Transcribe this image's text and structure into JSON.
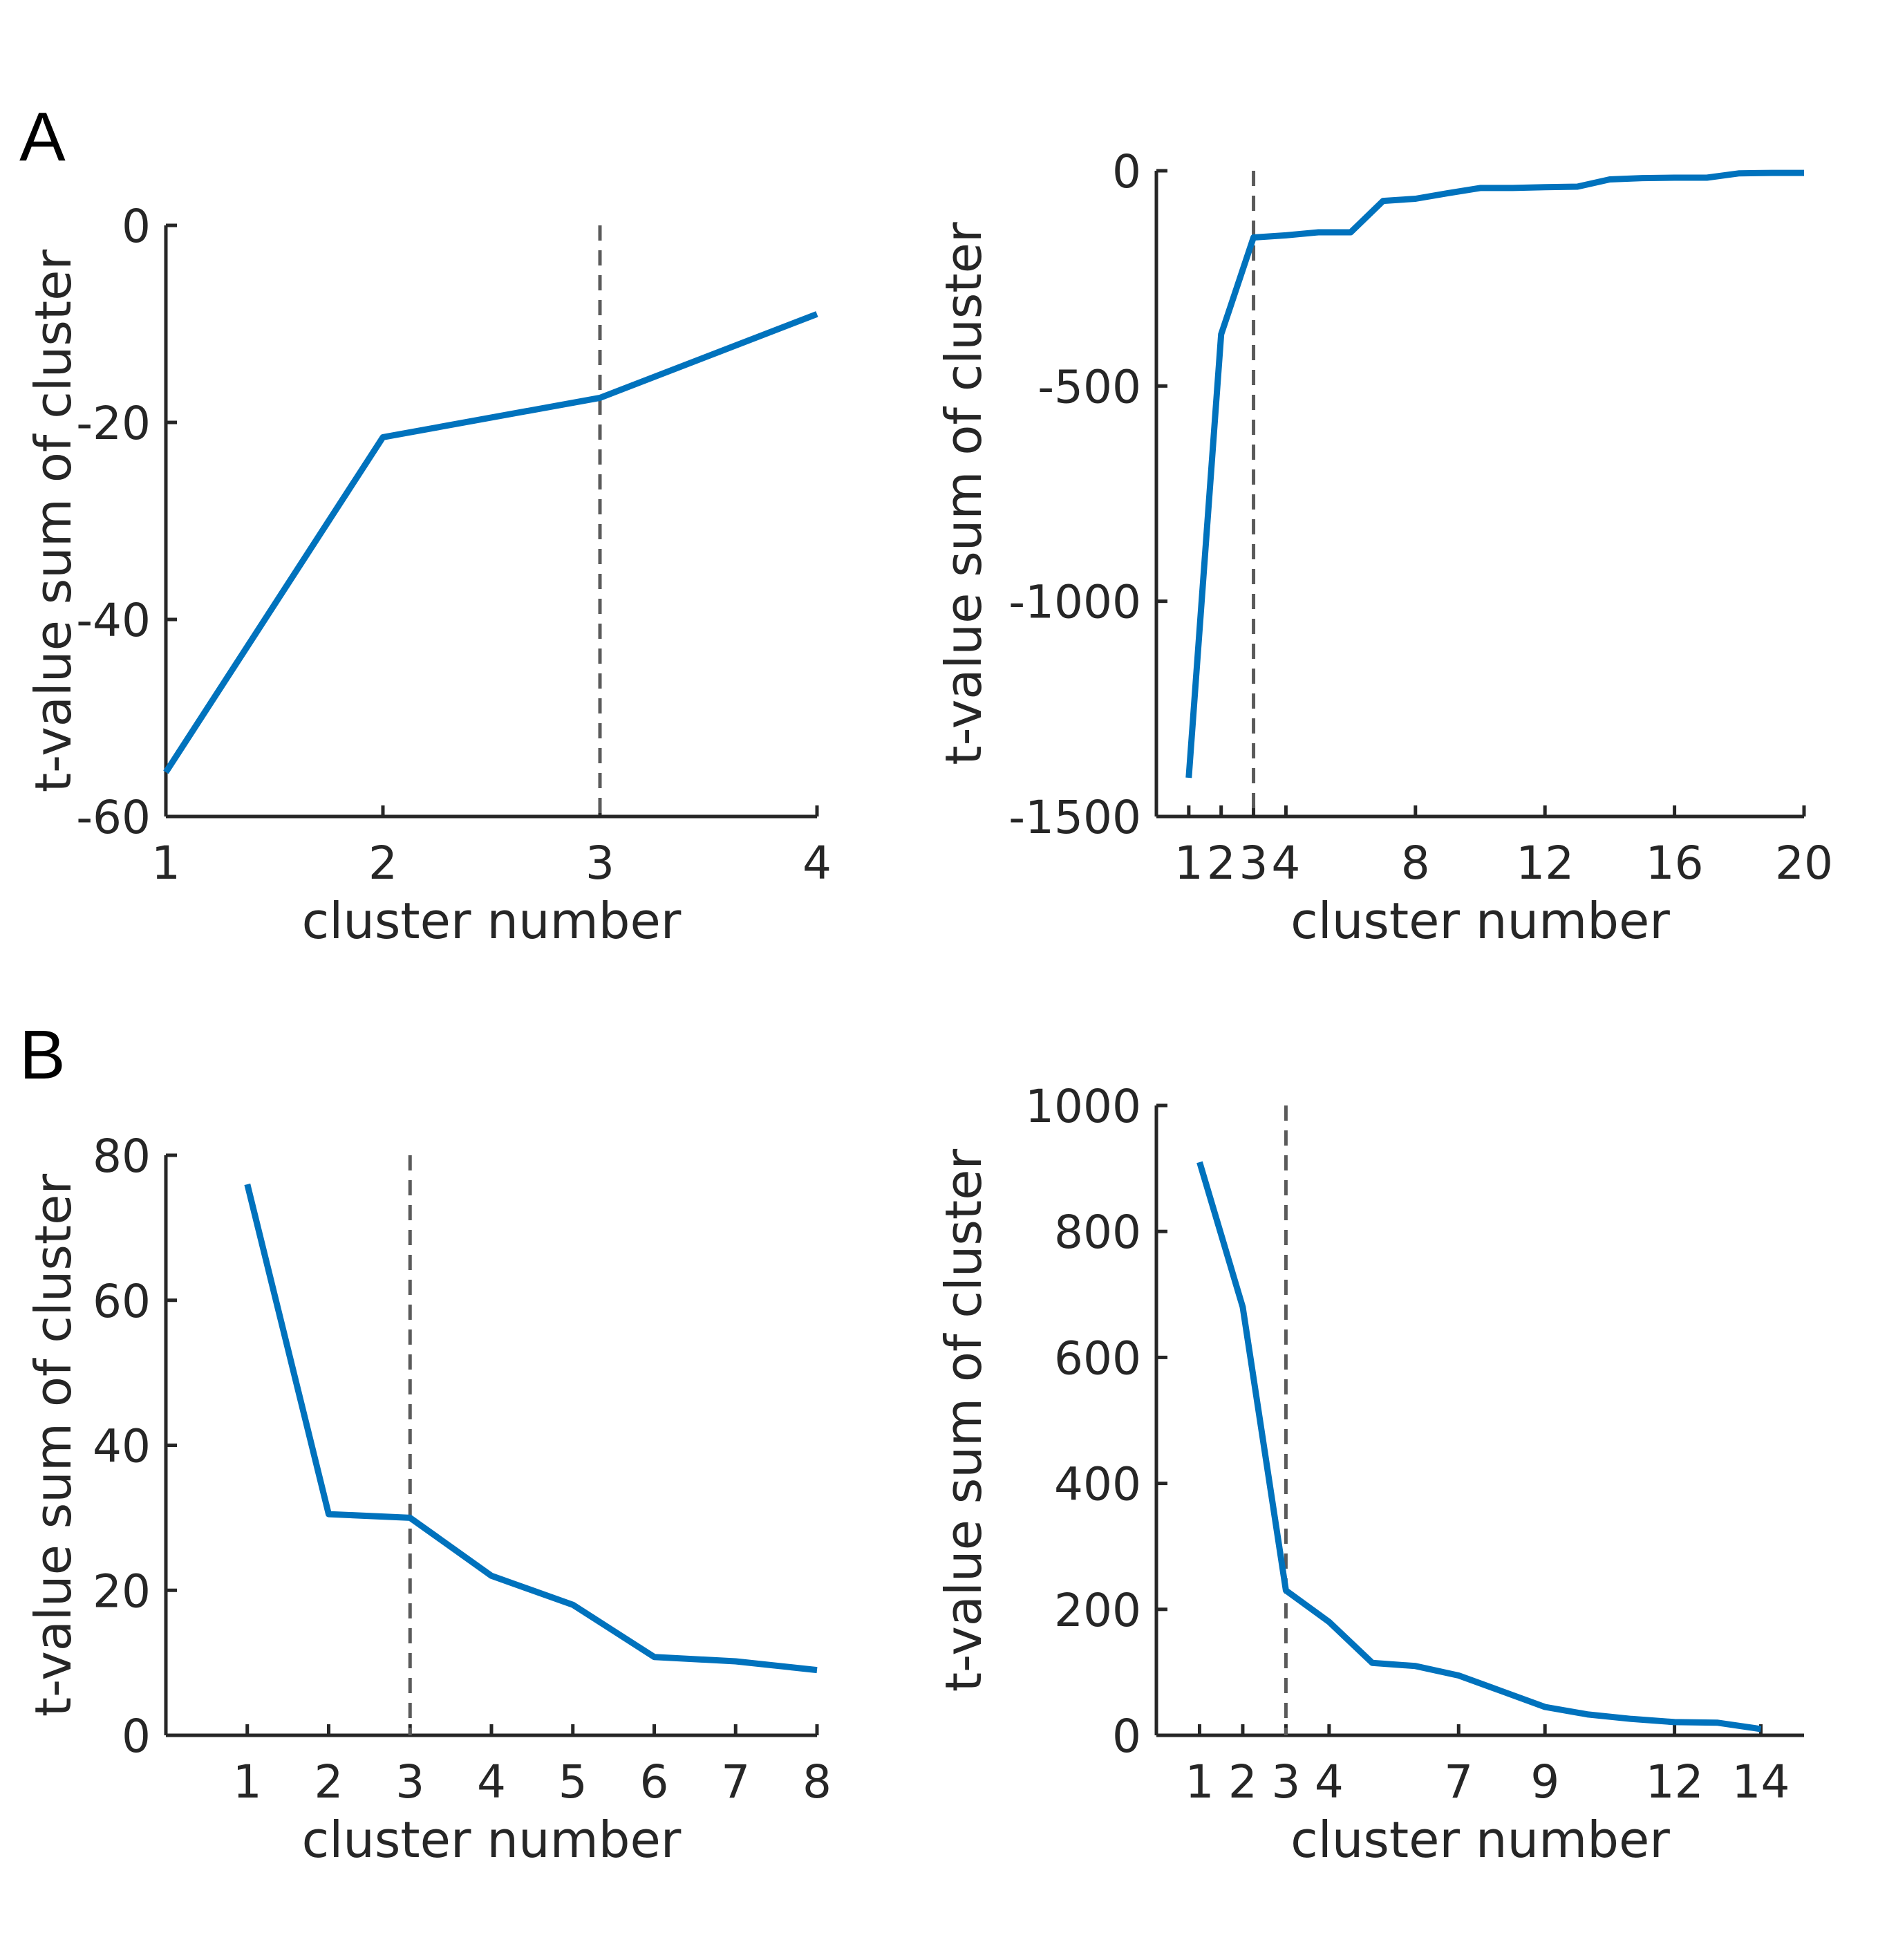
{
  "figure": {
    "panel_labels": [
      "A",
      "B"
    ]
  },
  "colors": {
    "line": "#0072BD",
    "axis": "#262626",
    "threshold": "#5a5a5a"
  },
  "chart_data": [
    {
      "type": "line",
      "panel": "A",
      "title": "",
      "xlabel": "cluster number",
      "ylabel": "t-value sum of cluster",
      "xlim": [
        1,
        4
      ],
      "ylim": [
        -60,
        0
      ],
      "xticks": [
        1,
        2,
        3,
        4
      ],
      "xtick_labels": [
        "1",
        "2",
        "3",
        "4"
      ],
      "yticks": [
        -60,
        -40,
        -20,
        0
      ],
      "ytick_labels": [
        "-60",
        "-40",
        "-20",
        "0"
      ],
      "threshold_x": 3,
      "x": [
        1,
        2,
        3,
        4
      ],
      "y": [
        -55.5,
        -21.5,
        -17.5,
        -9
      ]
    },
    {
      "type": "line",
      "panel": "A",
      "title": "",
      "xlabel": "cluster number",
      "ylabel": "t-value sum of cluster",
      "xlim": [
        0,
        20
      ],
      "ylim": [
        -1500,
        0
      ],
      "xticks": [
        1,
        2,
        3,
        4,
        8,
        12,
        16,
        20
      ],
      "xtick_labels": [
        "1",
        "2",
        "3",
        "4",
        "8",
        "12",
        "16",
        "20"
      ],
      "yticks": [
        -1500,
        -1000,
        -500,
        0
      ],
      "ytick_labels": [
        "-1500",
        "-1000",
        "-500",
        "0"
      ],
      "threshold_x": 3,
      "x": [
        1,
        2,
        3,
        4,
        5,
        6,
        7,
        8,
        9,
        10,
        11,
        12,
        13,
        14,
        15,
        16,
        17,
        18,
        19,
        20
      ],
      "y": [
        -1410,
        -380,
        -155,
        -150,
        -143,
        -143,
        -70,
        -65,
        -52,
        -40,
        -40,
        -38,
        -37,
        -20,
        -17,
        -16,
        -16,
        -6,
        -5,
        -5
      ]
    },
    {
      "type": "line",
      "panel": "B",
      "title": "",
      "xlabel": "cluster number",
      "ylabel": "t-value sum of cluster",
      "xlim": [
        0,
        8
      ],
      "ylim": [
        0,
        80
      ],
      "xticks": [
        1,
        2,
        3,
        4,
        5,
        6,
        7,
        8
      ],
      "xtick_labels": [
        "1",
        "2",
        "3",
        "4",
        "5",
        "6",
        "7",
        "8"
      ],
      "yticks": [
        0,
        20,
        40,
        60,
        80
      ],
      "ytick_labels": [
        "0",
        "20",
        "40",
        "60",
        "80"
      ],
      "threshold_x": 3,
      "x": [
        1,
        2,
        3,
        4,
        5,
        6,
        7,
        8
      ],
      "y": [
        76,
        30.5,
        30,
        22,
        18,
        10.8,
        10.2,
        9
      ]
    },
    {
      "type": "line",
      "panel": "B",
      "title": "",
      "xlabel": "cluster number",
      "ylabel": "t-value sum of cluster",
      "xlim": [
        0,
        15
      ],
      "ylim": [
        0,
        1000
      ],
      "xticks": [
        1,
        2,
        3,
        4,
        7,
        9,
        12,
        14
      ],
      "xtick_labels": [
        "1",
        "2",
        "3",
        "4",
        "7",
        "9",
        "12",
        "14"
      ],
      "yticks": [
        0,
        200,
        400,
        600,
        800,
        1000
      ],
      "ytick_labels": [
        "0",
        "200",
        "400",
        "600",
        "800",
        "1000"
      ],
      "threshold_x": 3,
      "x": [
        1,
        2,
        3,
        4,
        5,
        6,
        7,
        8,
        9,
        10,
        11,
        12,
        13,
        14
      ],
      "y": [
        910,
        680,
        230,
        180,
        115,
        110,
        95,
        70,
        45,
        33,
        26,
        21,
        20,
        10
      ]
    }
  ]
}
